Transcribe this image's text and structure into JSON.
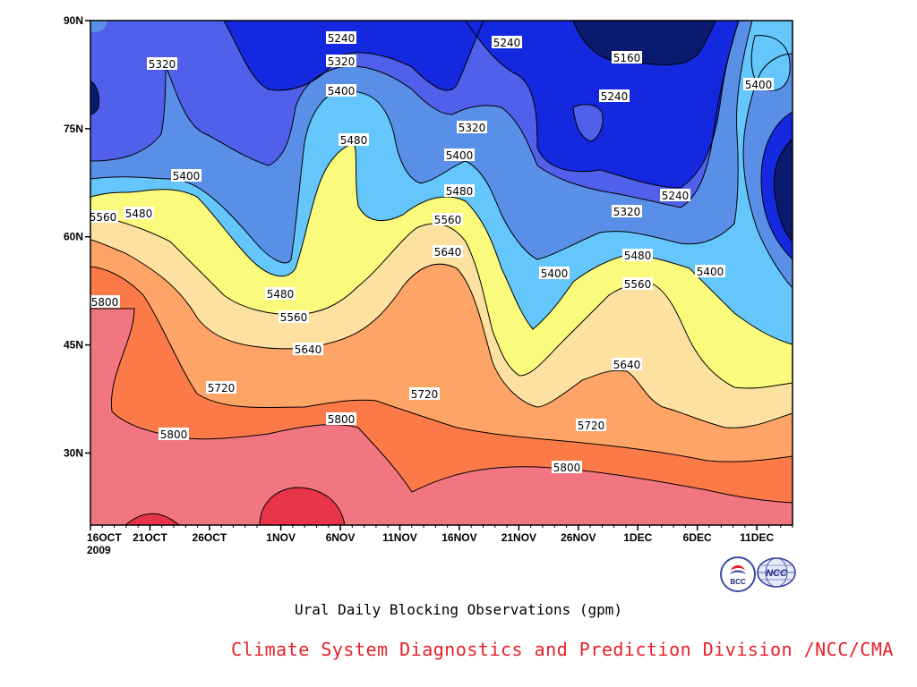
{
  "chart_data": {
    "type": "contour",
    "title": "Ural Daily Blocking Observations (gpm)",
    "source": "Climate System Diagnostics and Prediction Division /NCC/CMA",
    "x_ticks": [
      "16OCT",
      "21OCT",
      "26OCT",
      "1NOV",
      "6NOV",
      "11NOV",
      "16NOV",
      "21NOV",
      "26NOV",
      "1DEC",
      "6DEC",
      "11DEC"
    ],
    "x_year": "2009",
    "y_ticks": [
      "30N",
      "45N",
      "60N",
      "75N",
      "90N"
    ],
    "y_tick_values": [
      30,
      45,
      60,
      75,
      90
    ],
    "ylim": [
      20,
      90
    ],
    "x_range": [
      "2009-10-16",
      "2009-12-14"
    ],
    "contour_levels": [
      5160,
      5240,
      5320,
      5400,
      5480,
      5560,
      5640,
      5720,
      5800,
      5880
    ],
    "fill_colors": [
      "#0a1a6e",
      "#1428e0",
      "#5060ea",
      "#5a8fe8",
      "#64c6fb",
      "#fafa7c",
      "#fde1a1",
      "#fda466",
      "#fb7a48",
      "#f27682",
      "#e83448"
    ],
    "contour_labels": [
      "5240",
      "5240",
      "5160",
      "5240",
      "5320",
      "5320",
      "5320",
      "5400",
      "5400",
      "5400",
      "5400",
      "5400",
      "5400",
      "5480",
      "5480",
      "5480",
      "5480",
      "5480",
      "5560",
      "5560",
      "5560",
      "5560",
      "5640",
      "5640",
      "5640",
      "5720",
      "5720",
      "5720",
      "5800",
      "5800",
      "5800",
      "5800",
      "5320",
      "5240"
    ]
  }
}
